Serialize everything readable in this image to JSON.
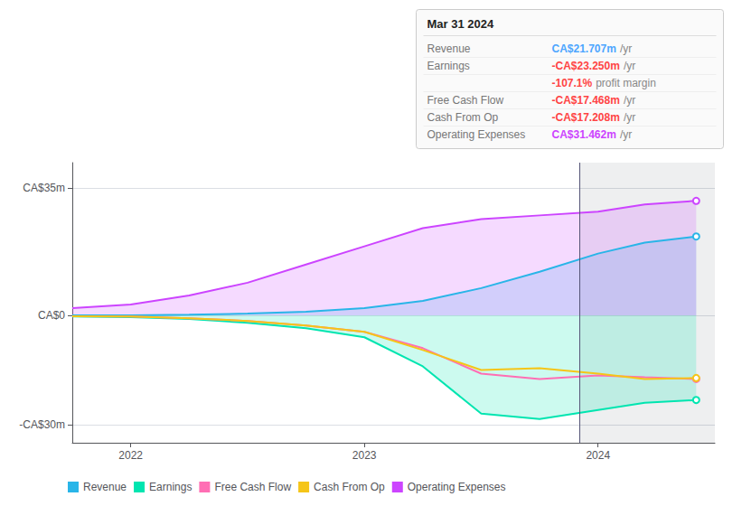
{
  "chart_data": {
    "type": "line",
    "x": [
      2021.75,
      2022.0,
      2022.25,
      2022.5,
      2022.75,
      2023.0,
      2023.25,
      2023.5,
      2023.75,
      2024.0,
      2024.2,
      2024.42
    ],
    "xlim": [
      2021.75,
      2024.5
    ],
    "xticks": [
      2022,
      2023,
      2024
    ],
    "ylim": [
      -35,
      42
    ],
    "yticks": [
      {
        "value": 35,
        "label": "CA$35m"
      },
      {
        "value": 0,
        "label": "CA$0"
      },
      {
        "value": -30,
        "label": "-CA$30m"
      }
    ],
    "grid": true,
    "legend": "lower left",
    "highlight_x": 2023.92,
    "series": [
      {
        "name": "Revenue",
        "type": "area",
        "color": "#29b5e8",
        "values": [
          0.0,
          0.0,
          0.2,
          0.5,
          1.0,
          2.0,
          4.0,
          7.5,
          12.0,
          17.0,
          20.0,
          21.7
        ]
      },
      {
        "name": "Earnings",
        "type": "area",
        "color": "#00e5b0",
        "values": [
          -0.3,
          -0.5,
          -1.0,
          -2.0,
          -3.5,
          -6.0,
          -14.0,
          -27.0,
          -28.5,
          -26.0,
          -24.0,
          -23.25
        ]
      },
      {
        "name": "Free Cash Flow",
        "type": "line",
        "color": "#ff6eb4",
        "values": [
          -0.2,
          -0.3,
          -0.8,
          -1.5,
          -2.8,
          -4.5,
          -9.0,
          -16.0,
          -17.5,
          -16.5,
          -17.0,
          -17.47
        ]
      },
      {
        "name": "Cash From Op",
        "type": "line",
        "color": "#f5c518",
        "values": [
          -0.2,
          -0.3,
          -0.8,
          -1.5,
          -2.8,
          -4.5,
          -9.5,
          -15.0,
          -14.5,
          -16.0,
          -17.5,
          -17.2
        ]
      },
      {
        "name": "Operating Expenses",
        "type": "area",
        "color": "#cc44ff",
        "values": [
          2.0,
          3.0,
          5.5,
          9.0,
          14.0,
          19.0,
          24.0,
          26.5,
          27.5,
          28.5,
          30.5,
          31.5
        ]
      }
    ],
    "annotations": [
      {
        "title": "Mar 31 2024",
        "rows": [
          {
            "label": "Revenue",
            "value": "CA$21.707m",
            "suffix": "/yr",
            "color": "#4da6ff"
          },
          {
            "label": "Earnings",
            "value": "-CA$23.250m",
            "suffix": "/yr",
            "color": "#ff4444"
          },
          {
            "value": "-107.1%",
            "suffix": "profit margin",
            "color": "#ff4444"
          },
          {
            "label": "Free Cash Flow",
            "value": "-CA$17.468m",
            "suffix": "/yr",
            "color": "#ff4444"
          },
          {
            "label": "Cash From Op",
            "value": "-CA$17.208m",
            "suffix": "/yr",
            "color": "#ff4444"
          },
          {
            "label": "Operating Expenses",
            "value": "CA$31.462m",
            "suffix": "/yr",
            "color": "#cc44ff"
          }
        ]
      }
    ]
  }
}
